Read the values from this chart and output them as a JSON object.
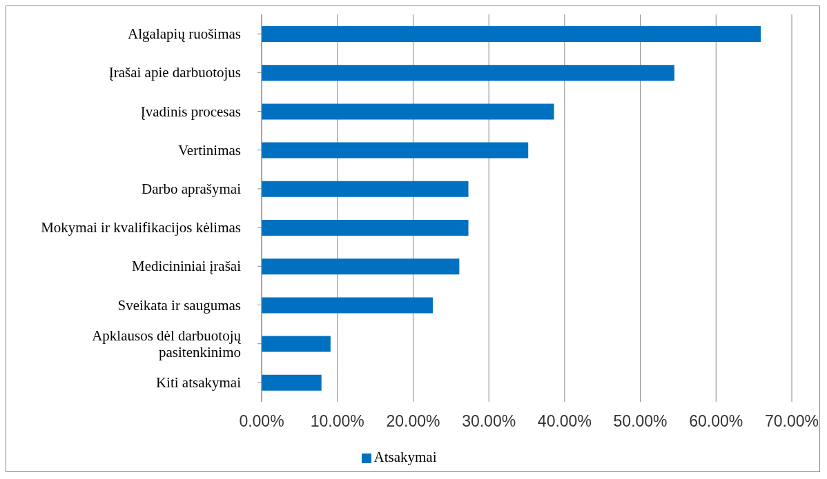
{
  "chart_data": {
    "type": "bar",
    "orientation": "horizontal",
    "categories": [
      "Algalapių ruošimas",
      "Įrašai apie darbuotojus",
      "Įvadinis procesas",
      "Vertinimas",
      "Darbo aprašymai",
      "Mokymai ir kvalifikacijos kėlimas",
      "Medicininiai įrašai",
      "Sveikata ir saugumas",
      "Apklausos dėl darbuotojų pasitenkinimo",
      "Kiti atsakymai"
    ],
    "series": [
      {
        "name": "Atsakymai",
        "color": "#0070c0",
        "values": [
          65.9,
          54.5,
          38.6,
          35.2,
          27.3,
          27.3,
          26.1,
          22.6,
          9.1,
          7.9
        ]
      }
    ],
    "xlim": [
      0,
      70
    ],
    "xticks": [
      {
        "value": 0,
        "label": "0.00%"
      },
      {
        "value": 10,
        "label": "10.00%"
      },
      {
        "value": 20,
        "label": "20.00%"
      },
      {
        "value": 30,
        "label": "30.00%"
      },
      {
        "value": 40,
        "label": "40.00%"
      },
      {
        "value": 50,
        "label": "50.00%"
      },
      {
        "value": 60,
        "label": "60.00%"
      },
      {
        "value": 70,
        "label": "70.00%"
      }
    ],
    "grid": "x",
    "legend": "bottom"
  }
}
